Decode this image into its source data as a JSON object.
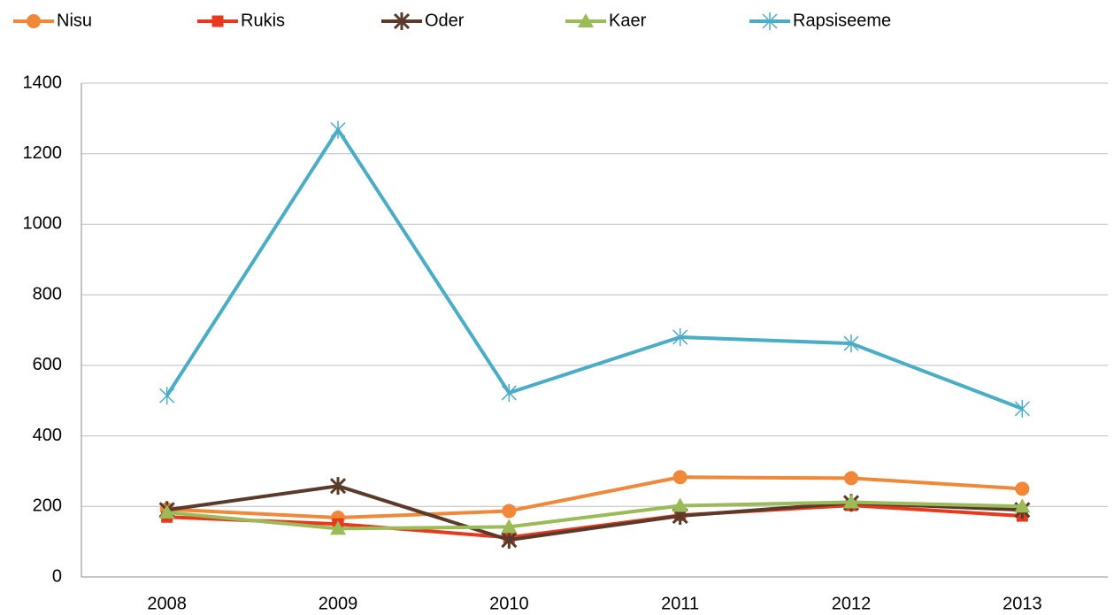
{
  "chart_data": {
    "type": "line",
    "categories": [
      "2008",
      "2009",
      "2010",
      "2011",
      "2012",
      "2013"
    ],
    "series": [
      {
        "name": "Nisu",
        "color": "#f0883a",
        "marker": "circle",
        "values": [
          192,
          168,
          187,
          283,
          280,
          250
        ]
      },
      {
        "name": "Rukis",
        "color": "#e8391e",
        "marker": "square",
        "values": [
          170,
          150,
          112,
          175,
          203,
          173
        ]
      },
      {
        "name": "Oder",
        "color": "#5a3b2b",
        "marker": "star",
        "values": [
          190,
          258,
          105,
          173,
          210,
          190
        ]
      },
      {
        "name": "Kaer",
        "color": "#9bbb59",
        "marker": "triangle",
        "values": [
          183,
          137,
          142,
          202,
          212,
          200
        ]
      },
      {
        "name": "Rapsiseeme",
        "color": "#4bacc6",
        "marker": "asterisk",
        "values": [
          514,
          1268,
          522,
          680,
          662,
          477
        ]
      }
    ],
    "ylim": [
      0,
      1400
    ],
    "yticks": [
      0,
      200,
      400,
      600,
      800,
      1000,
      1200,
      1400
    ],
    "grid": true,
    "legend": "top"
  }
}
